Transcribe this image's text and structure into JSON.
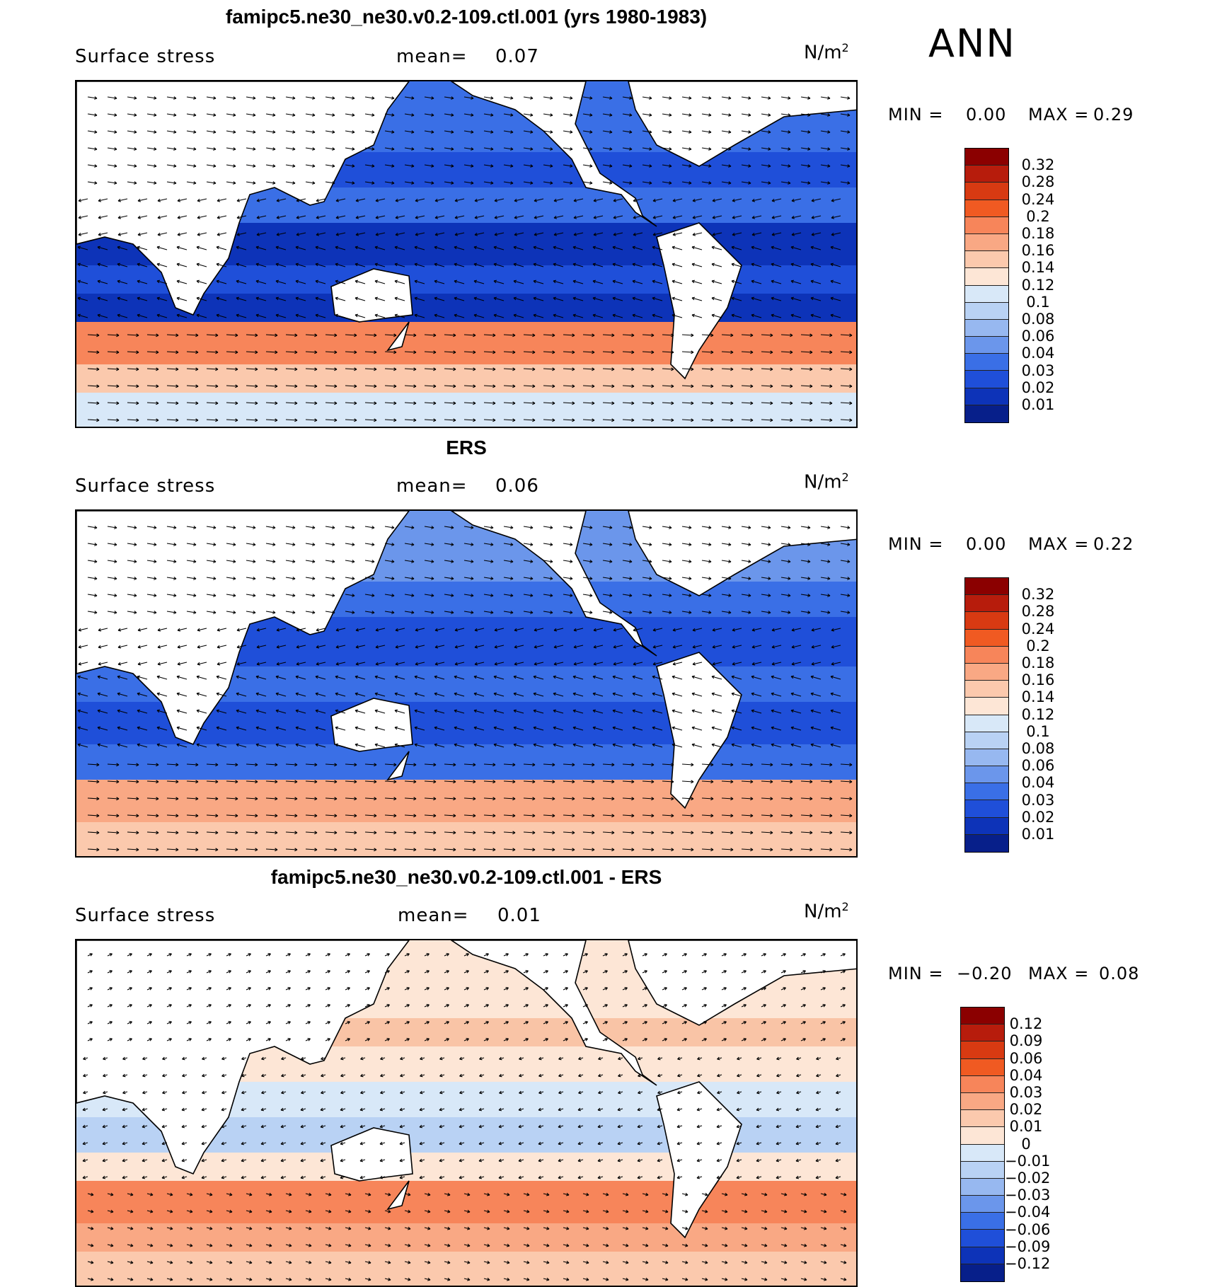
{
  "season": "ANN",
  "units_base": "N/m",
  "units_exp": "2",
  "panels": [
    {
      "title": "famipc5.ne30_ne30.v0.2-109.ctl.001 (yrs 1980-1983)",
      "variable": "Surface stress",
      "mean_label": "mean=",
      "mean_value": "0.07",
      "min_label": "MIN =",
      "min_value": "0.00",
      "max_label": "MAX =",
      "max_value": "0.29",
      "colorbar": {
        "labels": [
          "0.32",
          "0.28",
          "0.24",
          "0.2",
          "0.18",
          "0.16",
          "0.14",
          "0.12",
          "0.1",
          "0.08",
          "0.06",
          "0.04",
          "0.03",
          "0.02",
          "0.01"
        ],
        "colors": [
          "#8b0000",
          "#b71c0c",
          "#d83a12",
          "#f05a22",
          "#f7855a",
          "#f9a884",
          "#fbc9ad",
          "#fde6d6",
          "#d8e8f8",
          "#b9d2f4",
          "#97b8f0",
          "#6b96eb",
          "#3a6fe6",
          "#1f4fd9",
          "#0d33b8",
          "#071f8a"
        ]
      }
    },
    {
      "title": "ERS",
      "variable": "Surface stress",
      "mean_label": "mean=",
      "mean_value": "0.06",
      "min_label": "MIN =",
      "min_value": "0.00",
      "max_label": "MAX =",
      "max_value": "0.22",
      "colorbar": {
        "labels": [
          "0.32",
          "0.28",
          "0.24",
          "0.2",
          "0.18",
          "0.16",
          "0.14",
          "0.12",
          "0.1",
          "0.08",
          "0.06",
          "0.04",
          "0.03",
          "0.02",
          "0.01"
        ],
        "colors": [
          "#8b0000",
          "#b71c0c",
          "#d83a12",
          "#f05a22",
          "#f7855a",
          "#f9a884",
          "#fbc9ad",
          "#fde6d6",
          "#d8e8f8",
          "#b9d2f4",
          "#97b8f0",
          "#6b96eb",
          "#3a6fe6",
          "#1f4fd9",
          "#0d33b8",
          "#071f8a"
        ]
      }
    },
    {
      "title": "famipc5.ne30_ne30.v0.2-109.ctl.001 - ERS",
      "variable": "Surface stress",
      "mean_label": "mean=",
      "mean_value": "0.01",
      "min_label": "MIN =",
      "min_value": "−0.20",
      "max_label": "MAX =",
      "max_value": "0.08",
      "colorbar": {
        "labels": [
          "0.12",
          "0.09",
          "0.06",
          "0.04",
          "0.03",
          "0.02",
          "0.01",
          "0",
          "−0.01",
          "−0.02",
          "−0.03",
          "−0.04",
          "−0.06",
          "−0.09",
          "−0.12"
        ],
        "colors": [
          "#8b0000",
          "#b71c0c",
          "#d83a12",
          "#f05a22",
          "#f7855a",
          "#f9a884",
          "#fbc9ad",
          "#fde6d6",
          "#d8e8f8",
          "#b9d2f4",
          "#97b8f0",
          "#6b96eb",
          "#3a6fe6",
          "#1f4fd9",
          "#0d33b8",
          "#071f8a"
        ]
      }
    }
  ]
}
